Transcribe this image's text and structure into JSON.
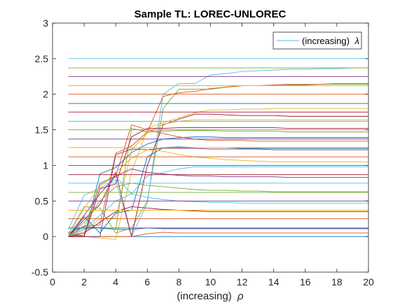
{
  "chart_data": {
    "type": "line",
    "title": "Sample TL: LOREC-UNLOREC",
    "xlabel": "(increasing)",
    "xlabel_symbol": "ρ",
    "ylabel": "",
    "xlim": [
      0,
      20
    ],
    "ylim": [
      -0.5,
      3
    ],
    "xticks": [
      0,
      2,
      4,
      6,
      8,
      10,
      12,
      14,
      16,
      18,
      20
    ],
    "yticks": [
      -0.5,
      0,
      0.5,
      1,
      1.5,
      2,
      2.5,
      3
    ],
    "grid": false,
    "legend": {
      "placement": "top-right",
      "entries": [
        {
          "label": "(increasing)",
          "symbol": "λ",
          "color": "#4DBEEE"
        }
      ]
    },
    "colors": [
      "#0072BD",
      "#D95319",
      "#EDB120",
      "#7E2F8E",
      "#77AC30",
      "#4DBEEE",
      "#A2142F"
    ],
    "x": [
      1,
      2,
      3,
      4,
      5,
      6,
      7,
      8,
      9,
      10,
      11,
      12,
      13,
      14,
      15,
      16,
      17,
      18,
      19,
      20
    ],
    "series": [
      {
        "values": [
          0,
          0,
          0,
          0,
          0,
          0,
          0,
          0,
          0,
          0,
          0,
          0,
          0,
          0,
          0,
          0,
          0,
          0,
          0,
          0
        ]
      },
      {
        "values": [
          0.04,
          0,
          0,
          0,
          0,
          0.04,
          0.06,
          0.05,
          0.05,
          0.05,
          0.05,
          0.05,
          0.05,
          0.05,
          0.05,
          0.05,
          0.05,
          0.05,
          0.05,
          0.05
        ]
      },
      {
        "values": [
          0.07,
          0,
          -0.02,
          -0.04,
          0.9,
          1.52,
          1.6,
          1.67,
          1.74,
          1.78,
          1.78,
          1.79,
          1.79,
          1.8,
          1.8,
          1.8,
          1.8,
          1.8,
          1.8,
          1.8
        ]
      },
      {
        "values": [
          0.05,
          0.14,
          0.12,
          0.1,
          0.1,
          0.12,
          0.11,
          0.11,
          0.11,
          0.11,
          0.11,
          0.11,
          0.11,
          0.11,
          0.11,
          0.11,
          0.11,
          0.11,
          0.11,
          0.11
        ]
      },
      {
        "values": [
          0.04,
          0.42,
          0.4,
          0.05,
          0.12,
          0.5,
          1.8,
          2.07,
          2.07,
          2.07,
          2.1,
          2.12,
          2.12,
          2.12,
          2.13,
          2.13,
          2.14,
          2.14,
          2.14,
          2.14
        ]
      },
      {
        "values": [
          0.1,
          0.58,
          0.68,
          0.8,
          0,
          0.47,
          2.0,
          2.15,
          2.15,
          2.27,
          2.29,
          2.32,
          2.33,
          2.34,
          2.35,
          2.35,
          2.36,
          2.36,
          2.37,
          2.37
        ]
      },
      {
        "values": [
          0,
          0.24,
          0.45,
          0.9,
          0,
          1.0,
          1.57,
          1.65,
          1.72,
          1.72,
          1.71,
          1.7,
          1.7,
          1.7,
          1.69,
          1.69,
          1.69,
          1.69,
          1.69,
          1.69
        ]
      },
      {
        "values": [
          0,
          0,
          0.88,
          0.97,
          1.18,
          1.3,
          1.37,
          1.39,
          1.4,
          1.4,
          1.39,
          1.39,
          1.39,
          1.39,
          1.39,
          1.39,
          1.39,
          1.39,
          1.39,
          1.39
        ]
      },
      {
        "values": [
          0,
          0.15,
          0.16,
          1.17,
          1.27,
          1.47,
          1.97,
          2.02,
          2.04,
          2.08,
          2.1,
          2.12,
          2.12,
          2.13,
          2.14,
          2.14,
          2.14,
          2.15,
          2.15,
          2.15
        ]
      },
      {
        "values": [
          0,
          0.07,
          0.25,
          0.26,
          1.22,
          1.45,
          1.58,
          1.62,
          1.64,
          1.64,
          1.64,
          1.64,
          1.64,
          1.64,
          1.64,
          1.64,
          1.64,
          1.64,
          1.64,
          1.64
        ]
      },
      {
        "values": [
          0,
          0,
          0,
          1.15,
          1.23,
          1.22,
          1.24,
          1.24,
          1.24,
          1.23,
          1.23,
          1.23,
          1.23,
          1.22,
          1.22,
          1.22,
          1.22,
          1.22,
          1.22,
          1.22
        ]
      },
      {
        "values": [
          0,
          0.1,
          0.13,
          0.1,
          1.52,
          1.47,
          1.48,
          1.49,
          1.49,
          1.49,
          1.48,
          1.48,
          1.48,
          1.48,
          1.47,
          1.47,
          1.47,
          1.47,
          1.47,
          1.47
        ]
      },
      {
        "values": [
          0,
          0.13,
          0.73,
          0.84,
          0.6,
          0.85,
          0.9,
          0.95,
          0.98,
          0.98,
          0.98,
          0.98,
          0.98,
          0.98,
          0.98,
          0.98,
          0.98,
          0.98,
          0.98,
          0.98
        ]
      },
      {
        "values": [
          0,
          0,
          0.67,
          0.74,
          1.4,
          1.52,
          1.52,
          1.53,
          1.53,
          1.53,
          1.53,
          1.53,
          1.53,
          1.53,
          1.52,
          1.52,
          1.52,
          1.52,
          1.52,
          1.52
        ]
      },
      {
        "values": [
          0,
          0.28,
          0.05,
          0.33,
          0.37,
          1.12,
          1.25,
          1.26,
          1.25,
          1.25,
          1.25,
          1.24,
          1.24,
          1.24,
          1.24,
          1.24,
          1.24,
          1.24,
          1.24,
          1.24
        ]
      },
      {
        "values": [
          0,
          0.02,
          0.75,
          0.85,
          1.57,
          1.5,
          1.45,
          1.4,
          1.37,
          1.35,
          1.35,
          1.35,
          1.34,
          1.34,
          1.34,
          1.34,
          1.34,
          1.34,
          1.34,
          1.34
        ]
      },
      {
        "values": [
          0,
          0.4,
          0.7,
          0.9,
          1.1,
          1.22,
          1.2,
          1.15,
          1.12,
          1.1,
          1.08,
          1.07,
          1.06,
          1.05,
          1.05,
          1.05,
          1.05,
          1.05,
          1.05,
          1.05
        ]
      },
      {
        "values": [
          0,
          0.3,
          0.6,
          0.85,
          0.95,
          0.9,
          0.88,
          0.86,
          0.85,
          0.85,
          0.84,
          0.84,
          0.84,
          0.84,
          0.83,
          0.83,
          0.83,
          0.83,
          0.83,
          0.83
        ]
      },
      {
        "values": [
          0,
          0.2,
          0.5,
          0.7,
          0.75,
          0.72,
          0.7,
          0.68,
          0.66,
          0.65,
          0.65,
          0.64,
          0.64,
          0.63,
          0.63,
          0.63,
          0.63,
          0.63,
          0.63,
          0.63
        ]
      },
      {
        "values": [
          0,
          0.1,
          0.3,
          0.5,
          0.6,
          0.55,
          0.52,
          0.5,
          0.49,
          0.48,
          0.48,
          0.47,
          0.47,
          0.47,
          0.47,
          0.47,
          0.47,
          0.47,
          0.47,
          0.47
        ]
      },
      {
        "values": [
          0,
          0.05,
          0.2,
          0.35,
          0.42,
          0.4,
          0.38,
          0.37,
          0.36,
          0.35,
          0.35,
          0.35,
          0.35,
          0.35,
          0.35,
          0.35,
          0.35,
          0.35,
          0.35,
          0.35
        ]
      },
      {
        "values": [
          0.12,
          0.12,
          0.12,
          0.12,
          0.12,
          0.12,
          0.12,
          0.12,
          0.12,
          0.12,
          0.12,
          0.12,
          0.12,
          0.12,
          0.12,
          0.12,
          0.12,
          0.12,
          0.12,
          0.12
        ]
      },
      {
        "values": [
          0.25,
          0.25,
          0.25,
          0.25,
          0.25,
          0.25,
          0.25,
          0.25,
          0.25,
          0.25,
          0.25,
          0.25,
          0.25,
          0.25,
          0.25,
          0.25,
          0.25,
          0.25,
          0.25,
          0.25
        ]
      },
      {
        "values": [
          0.37,
          0.37,
          0.37,
          0.37,
          0.37,
          0.37,
          0.37,
          0.37,
          0.37,
          0.37,
          0.37,
          0.37,
          0.37,
          0.37,
          0.37,
          0.37,
          0.37,
          0.37,
          0.37,
          0.37
        ]
      },
      {
        "values": [
          0.5,
          0.5,
          0.5,
          0.5,
          0.5,
          0.5,
          0.5,
          0.5,
          0.5,
          0.5,
          0.5,
          0.5,
          0.5,
          0.5,
          0.5,
          0.5,
          0.5,
          0.5,
          0.5,
          0.5
        ]
      },
      {
        "values": [
          0.62,
          0.62,
          0.62,
          0.62,
          0.62,
          0.62,
          0.62,
          0.62,
          0.62,
          0.62,
          0.62,
          0.62,
          0.62,
          0.62,
          0.62,
          0.62,
          0.62,
          0.62,
          0.62,
          0.62
        ]
      },
      {
        "values": [
          0.75,
          0.75,
          0.75,
          0.75,
          0.75,
          0.75,
          0.75,
          0.75,
          0.75,
          0.75,
          0.75,
          0.75,
          0.75,
          0.75,
          0.75,
          0.75,
          0.75,
          0.75,
          0.75,
          0.75
        ]
      },
      {
        "values": [
          0.87,
          0.87,
          0.87,
          0.87,
          0.87,
          0.87,
          0.87,
          0.87,
          0.87,
          0.87,
          0.87,
          0.87,
          0.87,
          0.87,
          0.87,
          0.87,
          0.87,
          0.87,
          0.87,
          0.87
        ]
      },
      {
        "values": [
          1.0,
          1.0,
          1.0,
          1.0,
          1.0,
          1.0,
          1.0,
          1.0,
          1.0,
          1.0,
          1.0,
          1.0,
          1.0,
          1.0,
          1.0,
          1.0,
          1.0,
          1.0,
          1.0,
          1.0
        ]
      },
      {
        "values": [
          1.12,
          1.12,
          1.12,
          1.12,
          1.12,
          1.12,
          1.12,
          1.12,
          1.12,
          1.12,
          1.12,
          1.12,
          1.12,
          1.12,
          1.12,
          1.12,
          1.12,
          1.12,
          1.12,
          1.12
        ]
      },
      {
        "values": [
          1.25,
          1.25,
          1.25,
          1.25,
          1.25,
          1.25,
          1.25,
          1.25,
          1.25,
          1.25,
          1.25,
          1.25,
          1.25,
          1.25,
          1.25,
          1.25,
          1.25,
          1.25,
          1.25,
          1.25
        ]
      },
      {
        "values": [
          1.37,
          1.37,
          1.37,
          1.37,
          1.37,
          1.37,
          1.37,
          1.37,
          1.37,
          1.37,
          1.37,
          1.37,
          1.37,
          1.37,
          1.37,
          1.37,
          1.37,
          1.37,
          1.37,
          1.37
        ]
      },
      {
        "values": [
          1.5,
          1.5,
          1.5,
          1.5,
          1.5,
          1.5,
          1.5,
          1.5,
          1.5,
          1.5,
          1.5,
          1.5,
          1.5,
          1.5,
          1.5,
          1.5,
          1.5,
          1.5,
          1.5,
          1.5
        ]
      },
      {
        "values": [
          1.62,
          1.62,
          1.62,
          1.62,
          1.62,
          1.62,
          1.62,
          1.62,
          1.62,
          1.62,
          1.62,
          1.62,
          1.62,
          1.62,
          1.62,
          1.62,
          1.62,
          1.62,
          1.62,
          1.62
        ]
      },
      {
        "values": [
          1.75,
          1.75,
          1.75,
          1.75,
          1.75,
          1.75,
          1.75,
          1.75,
          1.75,
          1.75,
          1.75,
          1.75,
          1.75,
          1.75,
          1.75,
          1.75,
          1.75,
          1.75,
          1.75,
          1.75
        ]
      },
      {
        "values": [
          1.87,
          1.87,
          1.87,
          1.87,
          1.87,
          1.87,
          1.87,
          1.87,
          1.87,
          1.87,
          1.87,
          1.87,
          1.87,
          1.87,
          1.87,
          1.87,
          1.87,
          1.87,
          1.87,
          1.87
        ]
      },
      {
        "values": [
          2.0,
          2.0,
          2.0,
          2.0,
          2.0,
          2.0,
          2.0,
          2.0,
          2.0,
          2.0,
          2.0,
          2.0,
          2.0,
          2.0,
          2.0,
          2.0,
          2.0,
          2.0,
          2.0,
          2.0
        ]
      },
      {
        "values": [
          2.12,
          2.12,
          2.12,
          2.12,
          2.12,
          2.12,
          2.12,
          2.12,
          2.12,
          2.12,
          2.12,
          2.12,
          2.12,
          2.12,
          2.12,
          2.12,
          2.12,
          2.12,
          2.12,
          2.12
        ]
      },
      {
        "values": [
          2.25,
          2.25,
          2.25,
          2.25,
          2.25,
          2.25,
          2.25,
          2.25,
          2.25,
          2.25,
          2.25,
          2.25,
          2.25,
          2.25,
          2.25,
          2.25,
          2.25,
          2.25,
          2.25,
          2.25
        ]
      },
      {
        "values": [
          2.37,
          2.37,
          2.37,
          2.37,
          2.37,
          2.37,
          2.37,
          2.37,
          2.37,
          2.37,
          2.37,
          2.37,
          2.37,
          2.37,
          2.37,
          2.37,
          2.37,
          2.37,
          2.37,
          2.37
        ]
      },
      {
        "values": [
          2.5,
          2.5,
          2.5,
          2.5,
          2.5,
          2.5,
          2.5,
          2.5,
          2.5,
          2.5,
          2.5,
          2.5,
          2.5,
          2.5,
          2.5,
          2.5,
          2.5,
          2.5,
          2.5,
          2.5
        ]
      }
    ]
  }
}
